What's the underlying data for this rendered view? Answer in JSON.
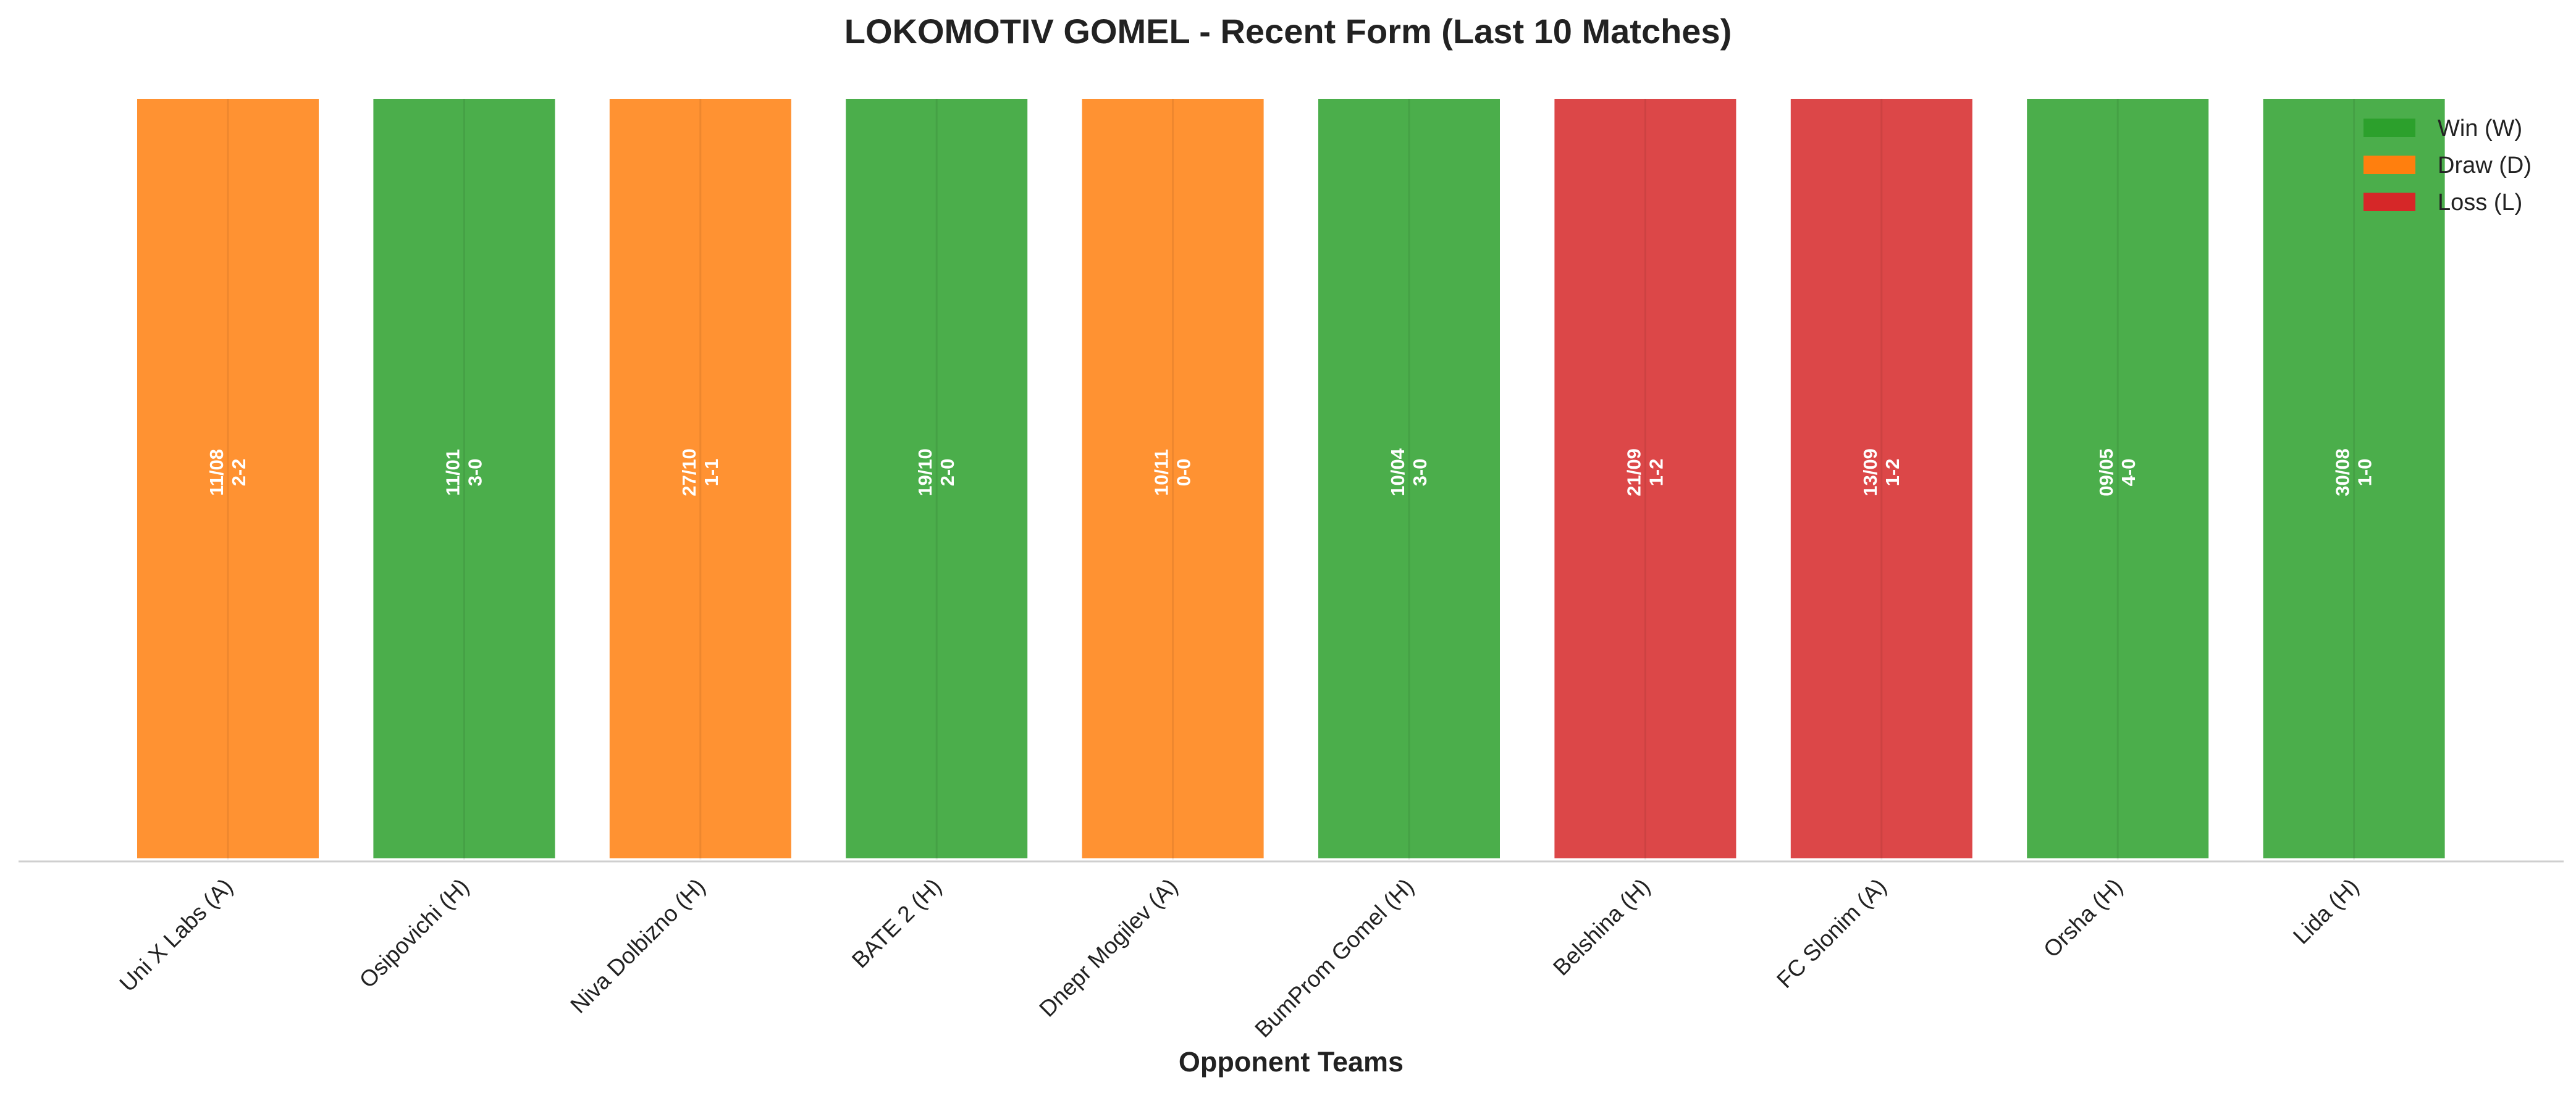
{
  "chart_data": {
    "type": "bar",
    "title": "LOKOMOTIV GOMEL - Recent Form (Last 10 Matches)",
    "xlabel": "Opponent Teams",
    "ylabel": "",
    "grid": false,
    "legend_position": "top-right",
    "categories": [
      "Uni X Labs (A)",
      "Osipovichi (H)",
      "Niva Dolbizno (H)",
      "BATE 2 (H)",
      "Dnepr Mogilev (A)",
      "BumProm Gomel (H)",
      "Belshina (H)",
      "FC Slonim (A)",
      "Orsha (H)",
      "Lida (H)"
    ],
    "values": [
      1,
      1,
      1,
      1,
      1,
      1,
      1,
      1,
      1,
      1
    ],
    "ylim": [
      0,
      1.12
    ],
    "results": [
      "D",
      "W",
      "D",
      "W",
      "D",
      "W",
      "L",
      "L",
      "W",
      "W"
    ],
    "dates": [
      "11/08",
      "11/01",
      "27/10",
      "19/10",
      "10/11",
      "10/04",
      "21/09",
      "13/09",
      "09/05",
      "30/08"
    ],
    "scores": [
      "2-2",
      "3-0",
      "1-1",
      "2-0",
      "0-0",
      "3-0",
      "1-2",
      "1-2",
      "4-0",
      "1-0"
    ],
    "legend": [
      {
        "key": "W",
        "label": "Win (W)",
        "color": "#2ca02c"
      },
      {
        "key": "D",
        "label": "Draw (D)",
        "color": "#ff7f0e"
      },
      {
        "key": "L",
        "label": "Loss (L)",
        "color": "#d62728"
      }
    ]
  }
}
